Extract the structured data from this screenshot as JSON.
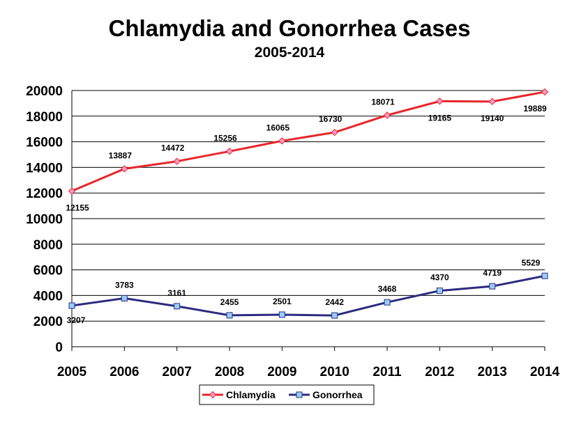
{
  "chart_data": {
    "type": "line",
    "title": "Chlamydia and Gonorrhea Cases",
    "subtitle": "2005-2014",
    "x": [
      "2005",
      "2006",
      "2007",
      "2008",
      "2009",
      "2010",
      "2011",
      "2012",
      "2013",
      "2014"
    ],
    "ylim": [
      0,
      20000
    ],
    "yticks": [
      0,
      2000,
      4000,
      6000,
      8000,
      10000,
      12000,
      14000,
      16000,
      18000,
      20000
    ],
    "grid": true,
    "legend_position": "bottom",
    "series": [
      {
        "name": "Chlamydia",
        "color": "#e8262a",
        "marker": "diamond",
        "marker_fill": "#ff99cc",
        "values": [
          12155,
          13887,
          14472,
          15256,
          16065,
          16730,
          18071,
          19165,
          19140,
          19889
        ]
      },
      {
        "name": "Gonorrhea",
        "color": "#2b2b7f",
        "marker": "square",
        "marker_fill": "#99ccff",
        "values": [
          3207,
          3783,
          3161,
          2455,
          2501,
          2442,
          3468,
          4370,
          4719,
          5529
        ]
      }
    ]
  }
}
